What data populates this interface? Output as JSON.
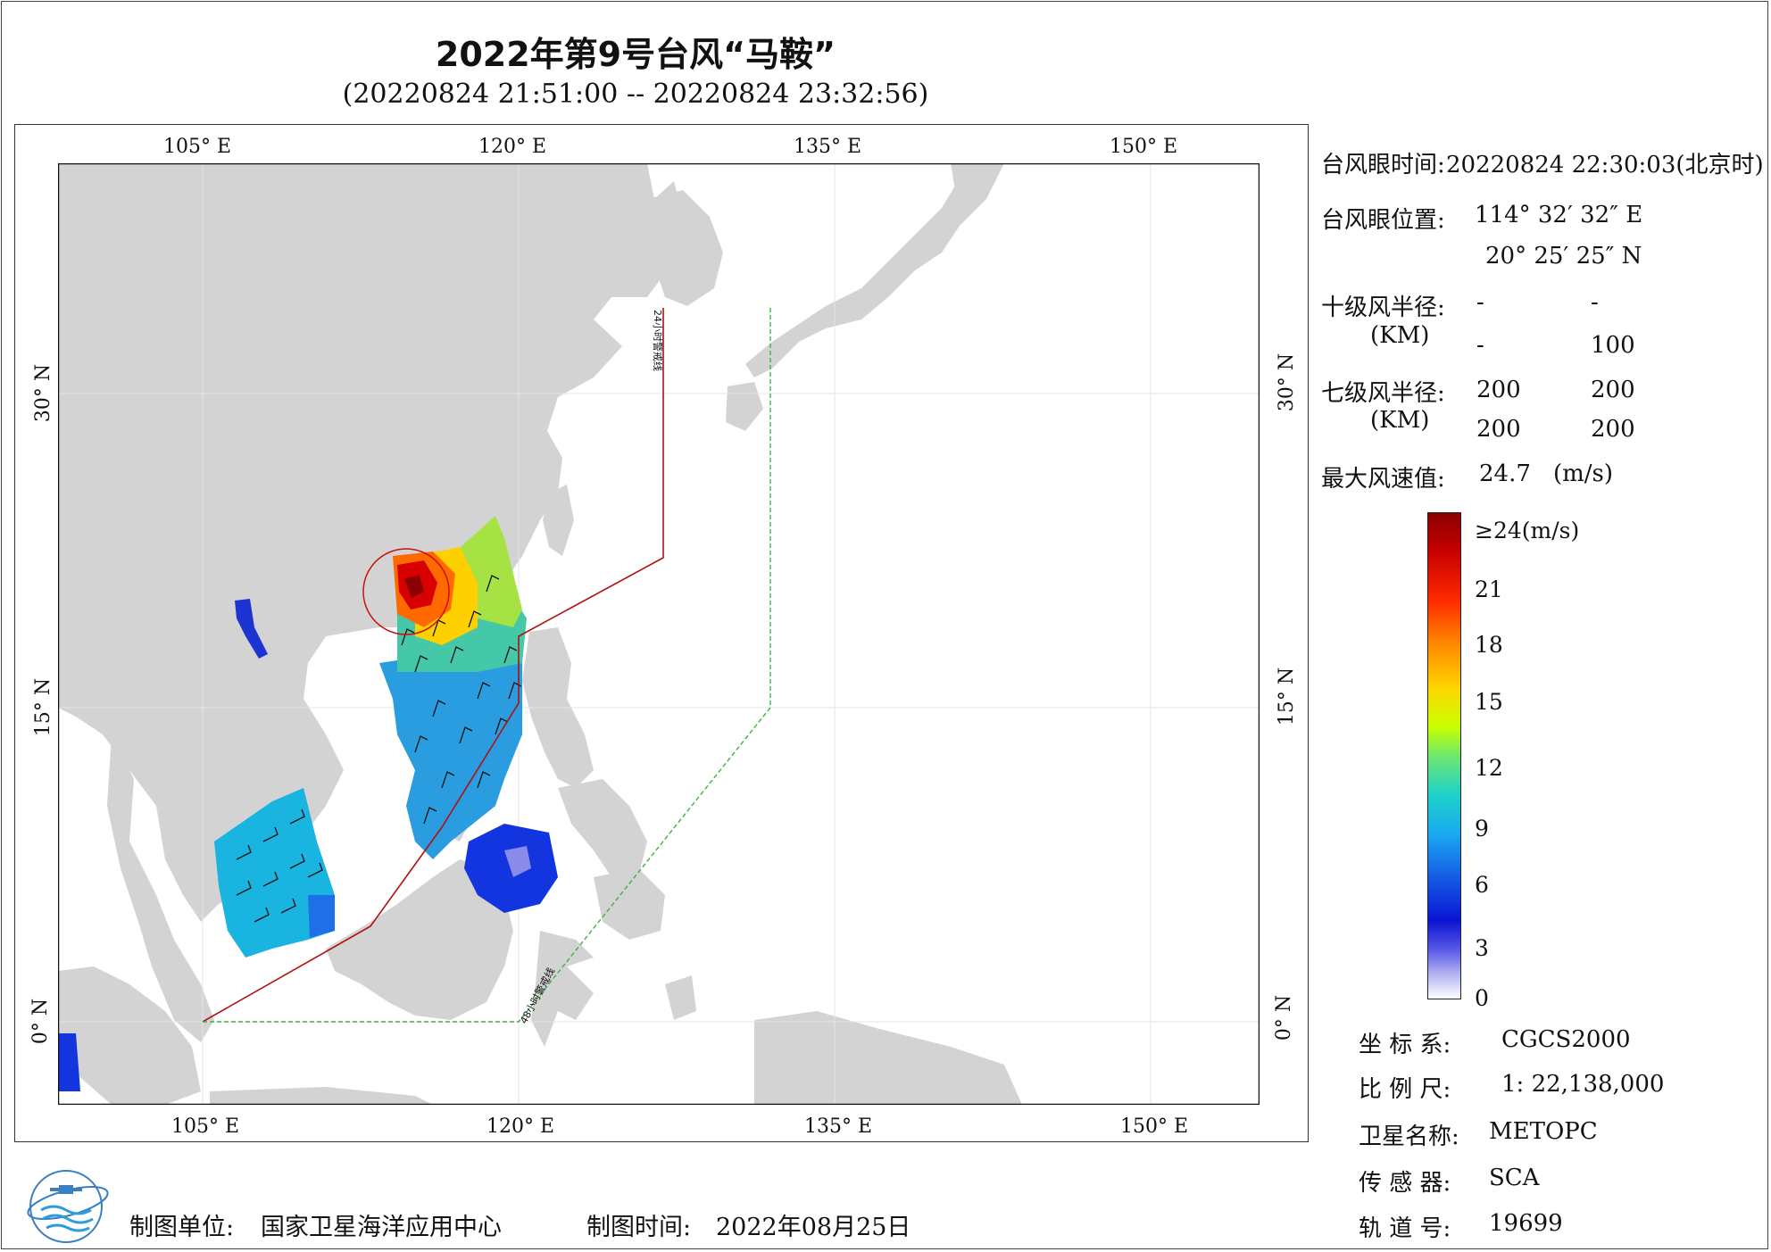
{
  "title": "2022年第9号台风“马鞍”",
  "subtitle": "(20220824 21:51:00 -- 20220824 23:32:56)",
  "map": {
    "top_lon_labels": [
      "105° E",
      "120° E",
      "135° E",
      "150° E"
    ],
    "bottom_lon_labels": [
      "105° E",
      "120° E",
      "135° E",
      "150° E"
    ],
    "left_lat_labels": [
      "30° N",
      "15° N",
      "0° N"
    ],
    "right_lat_labels": [
      "30° N",
      "15° N",
      "0° N"
    ],
    "warning_line_24h": "24小时警戒线",
    "warning_line_48h": "48小时警戒线",
    "colors": {
      "land": "#d3d3d3",
      "sea": "#ffffff",
      "line_24h": "#b01010",
      "line_48h": "#3cb43c",
      "eye_circle": "#cc1111"
    }
  },
  "info": {
    "eye_time_label": "台风眼时间:",
    "eye_time_value": "20220824 22:30:03(北京时)",
    "eye_pos_label": "台风眼位置:",
    "eye_lon": "114° 32′ 32″ E",
    "eye_lat": "20° 25′ 25″ N",
    "r10_label": "十级风半径:",
    "km_unit": "(KM)",
    "r10_values": [
      "-",
      "-",
      "-",
      "100"
    ],
    "r7_label": "七级风半径:",
    "r7_values": [
      "200",
      "200",
      "200",
      "200"
    ],
    "max_wind_label": "最大风速值:",
    "max_wind_value": "24.7",
    "max_wind_unit": "(m/s)"
  },
  "legend": {
    "labels": [
      "≥24(m/s)",
      "21",
      "18",
      "15",
      "12",
      "9",
      "6",
      "3",
      "0"
    ]
  },
  "meta": {
    "crs_label": "坐 标 系:",
    "crs_value": "CGCS2000",
    "scale_label": "比 例 尺:",
    "scale_value": "1: 22,138,000",
    "satellite_label": "卫星名称:",
    "satellite_value": "METOPC",
    "sensor_label": "传 感 器:",
    "sensor_value": "SCA",
    "orbit_label": "轨 道 号:",
    "orbit_value": "19699"
  },
  "footer": {
    "unit_label": "制图单位:",
    "unit_value": "国家卫星海洋应用中心",
    "time_label": "制图时间:",
    "time_value": "2022年08月25日"
  }
}
